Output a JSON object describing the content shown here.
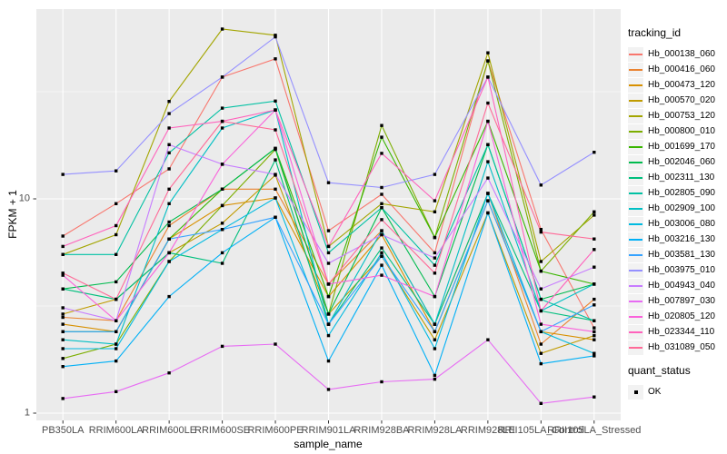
{
  "style": {
    "background": "#FFFFFF",
    "panel_bg": "#EBEBEB",
    "grid_color": "#FFFFFF",
    "axis_text_color": "#4D4D4D",
    "axis_title_color": "#000000",
    "tick_mark_color": "#333333",
    "marker_color": "#000000",
    "legend_key_bg": "#F2F2F2"
  },
  "legend": {
    "tracking_title": "tracking_id",
    "quant_title": "quant_status",
    "quant_label": "OK"
  },
  "chart_data": {
    "type": "line",
    "title": "",
    "xlabel": "sample_name",
    "ylabel": "FPKM + 1",
    "y_scale": "log10",
    "y_ticks": [
      1,
      10
    ],
    "y_minor": [
      3.162,
      31.623
    ],
    "ylim": [
      1,
      73
    ],
    "grid": true,
    "legend_position": "right",
    "marker": "filled-square",
    "categories": [
      "PB350LA",
      "RRIM600LA",
      "RRIM600LE",
      "RRIM600SE",
      "RRIM600PE",
      "RRIM901LA",
      "RRIM928BA",
      "RRIM928LA",
      "RRIM928LE",
      "RRII105LA_Control",
      "RRII105LA_Stressed"
    ],
    "series": [
      {
        "name": "Hb_000138_060",
        "color": "#F8766D",
        "values": [
          6.7,
          9.5,
          13.8,
          37,
          45,
          7.1,
          10.5,
          5.6,
          44,
          7.2,
          2.5
        ]
      },
      {
        "name": "Hb_000416_060",
        "color": "#EA8331",
        "values": [
          2.8,
          2.7,
          7.5,
          11.1,
          11.1,
          4.0,
          7.1,
          2.6,
          10.6,
          2.1,
          3.4
        ]
      },
      {
        "name": "Hb_000473_120",
        "color": "#D89000",
        "values": [
          2.6,
          2.4,
          6.5,
          9.3,
          10.1,
          3.5,
          6.8,
          2.4,
          9.8,
          2.4,
          2.2
        ]
      },
      {
        "name": "Hb_000570_020",
        "color": "#C09B00",
        "values": [
          2.9,
          3.4,
          5.6,
          7.7,
          12.9,
          2.9,
          5.4,
          2.2,
          8.6,
          1.9,
          2.3
        ]
      },
      {
        "name": "Hb_000753_120",
        "color": "#A3A500",
        "values": [
          5.5,
          6.8,
          28.5,
          62,
          58,
          6.0,
          9.5,
          8.7,
          48,
          5.1,
          8.4
        ]
      },
      {
        "name": "Hb_000800_010",
        "color": "#7CAE00",
        "values": [
          1.8,
          2.1,
          5.1,
          9.3,
          17,
          2.9,
          22,
          6.6,
          44,
          4.6,
          8.7
        ]
      },
      {
        "name": "Hb_001699_170",
        "color": "#39B600",
        "values": [
          2.4,
          2.4,
          6.5,
          11.1,
          17.2,
          3.5,
          19.4,
          6.6,
          23,
          4.6,
          4.0
        ]
      },
      {
        "name": "Hb_002046_060",
        "color": "#00BB4E",
        "values": [
          3.8,
          4.1,
          7.8,
          11.1,
          17.2,
          2.9,
          9.1,
          3.5,
          17.9,
          3.4,
          4.0
        ]
      },
      {
        "name": "Hb_002311_130",
        "color": "#00BF7D",
        "values": [
          3.8,
          3.4,
          5.6,
          5.0,
          15.2,
          2.6,
          5.9,
          2.6,
          10.6,
          3.0,
          2.7
        ]
      },
      {
        "name": "Hb_002805_090",
        "color": "#00C1A3",
        "values": [
          5.5,
          5.5,
          16.4,
          26.5,
          28.6,
          5.6,
          9.1,
          4.9,
          17.9,
          3.4,
          2.7
        ]
      },
      {
        "name": "Hb_002909_100",
        "color": "#00BFC4",
        "values": [
          2.2,
          2.1,
          9.5,
          21.4,
          26,
          2.6,
          7.1,
          2.6,
          14.9,
          3.0,
          4.0
        ]
      },
      {
        "name": "Hb_003006_080",
        "color": "#00BAE0",
        "values": [
          2.0,
          2.0,
          5.1,
          7.2,
          10.1,
          2.3,
          5.6,
          2.0,
          10.6,
          2.4,
          1.9
        ]
      },
      {
        "name": "Hb_003216_130",
        "color": "#00B0F6",
        "values": [
          1.65,
          1.75,
          3.5,
          5.6,
          8.2,
          1.75,
          4.9,
          1.5,
          8.6,
          1.7,
          1.85
        ]
      },
      {
        "name": "Hb_003581_130",
        "color": "#35A2FF",
        "values": [
          2.4,
          2.4,
          6.5,
          7.2,
          8.2,
          2.6,
          5.4,
          2.4,
          9.8,
          2.4,
          3.2
        ]
      },
      {
        "name": "Hb_003975_010",
        "color": "#9590FF",
        "values": [
          13,
          13.5,
          25,
          37,
          57,
          11.9,
          11.3,
          13,
          37,
          11.6,
          16.5
        ]
      },
      {
        "name": "Hb_004943_040",
        "color": "#C77CFF",
        "values": [
          3.1,
          2.7,
          17.9,
          14.5,
          13,
          5.0,
          6.8,
          5.3,
          12.5,
          3.8,
          4.8
        ]
      },
      {
        "name": "Hb_007897_030",
        "color": "#E76BF3",
        "values": [
          1.17,
          1.26,
          1.54,
          2.05,
          2.1,
          1.29,
          1.4,
          1.44,
          2.2,
          1.11,
          1.19
        ]
      },
      {
        "name": "Hb_020805_120",
        "color": "#FA62DB",
        "values": [
          4.4,
          2.7,
          5.6,
          14.5,
          26,
          4.0,
          4.4,
          3.5,
          23,
          2.6,
          2.4
        ]
      },
      {
        "name": "Hb_023344_110",
        "color": "#FF62BC",
        "values": [
          6.0,
          7.5,
          21.4,
          23,
          26,
          6.0,
          16.3,
          9.8,
          37,
          3.0,
          5.8
        ]
      },
      {
        "name": "Hb_031089_050",
        "color": "#FF6A98",
        "values": [
          4.5,
          3.4,
          11.1,
          23,
          21,
          4.0,
          8.0,
          4.5,
          28,
          7.0,
          6.5
        ]
      }
    ]
  }
}
